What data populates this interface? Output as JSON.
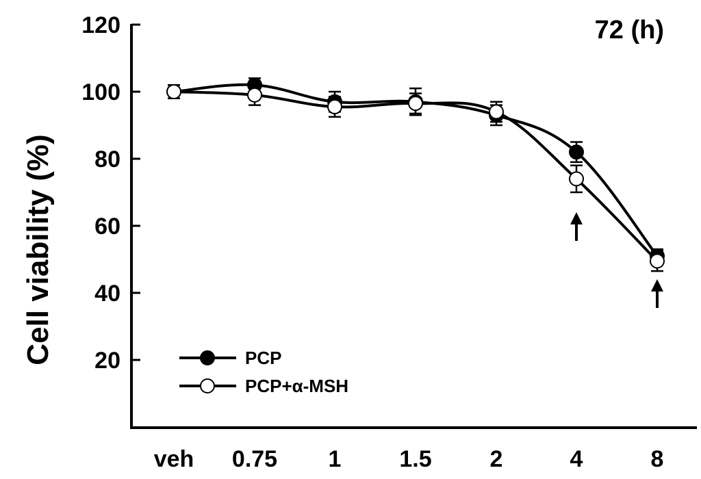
{
  "chart_data": {
    "type": "line",
    "categories": [
      "veh",
      "0.75",
      "1",
      "1.5",
      "2",
      "4",
      "8"
    ],
    "series": [
      {
        "name": "PCP",
        "marker": "filled-circle",
        "values": [
          100,
          102,
          97,
          97,
          93,
          82,
          51
        ],
        "errors": [
          2,
          2,
          3,
          4,
          3,
          3,
          2
        ]
      },
      {
        "name": "PCP+α-MSH",
        "marker": "open-circle",
        "values": [
          100,
          99,
          95.5,
          96.5,
          94,
          74,
          49.5
        ],
        "errors": [
          2,
          3,
          3,
          3,
          3,
          4,
          3
        ]
      }
    ],
    "ylabel": "Cell viability (%)",
    "xlabel": "",
    "ylim": [
      0,
      120
    ],
    "yticks": [
      20,
      40,
      60,
      80,
      100,
      120
    ],
    "annotation": "72 (h)",
    "arrow_categories": [
      "4",
      "8"
    ],
    "legend_position": "bottom-left",
    "grid": false,
    "colors": {
      "line": "#000000",
      "open_marker_fill": "#ffffff"
    }
  }
}
